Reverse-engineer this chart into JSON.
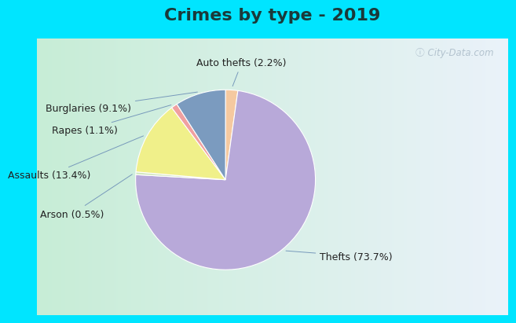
{
  "title": "Crimes by type - 2019",
  "labels": [
    "Auto thefts",
    "Thefts",
    "Arson",
    "Assaults",
    "Rapes",
    "Burglaries"
  ],
  "pct_labels": [
    "Auto thefts (2.2%)",
    "Thefts (73.7%)",
    "Arson (0.5%)",
    "Assaults (13.4%)",
    "Rapes (1.1%)",
    "Burglaries (9.1%)"
  ],
  "values": [
    2.2,
    73.7,
    0.5,
    13.4,
    1.1,
    9.1
  ],
  "colors": [
    "#f5c9a0",
    "#b8a9d9",
    "#d4e8c2",
    "#f0f08a",
    "#f0a0a0",
    "#7b9bbf"
  ],
  "bg_cyan": "#00e5ff",
  "bg_chart": "#d0ead8",
  "title_fontsize": 16,
  "label_fontsize": 9
}
